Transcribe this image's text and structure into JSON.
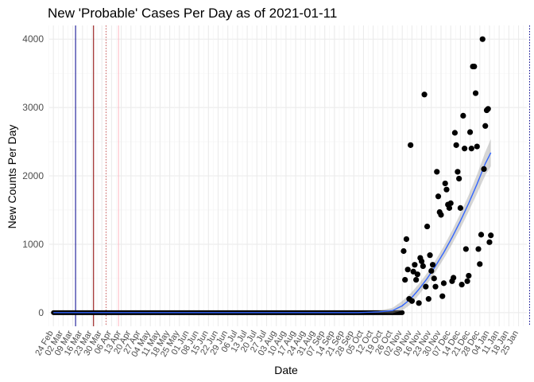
{
  "chart_data": {
    "type": "scatter",
    "title": "New 'Probable' Cases Per Day as of 2021-01-11",
    "xlabel": "Date",
    "ylabel": "New Counts Per Day",
    "ylim": [
      -200,
      4200
    ],
    "yticks": [
      0,
      1000,
      2000,
      3000,
      4000
    ],
    "x_origin": "2020-02-24",
    "xlim_days": [
      -3,
      342
    ],
    "x_tick_labels": [
      "24 Feb",
      "02 Mar",
      "09 Mar",
      "16 Mar",
      "23 Mar",
      "30 Mar",
      "06 Apr",
      "13 Apr",
      "20 Apr",
      "27 Apr",
      "04 May",
      "11 May",
      "18 May",
      "25 May",
      "01 Jun",
      "08 Jun",
      "15 Jun",
      "22 Jun",
      "29 Jun",
      "06 Jul",
      "13 Jul",
      "20 Jul",
      "27 Jul",
      "03 Aug",
      "10 Aug",
      "17 Aug",
      "24 Aug",
      "31 Aug",
      "07 Sep",
      "14 Sep",
      "21 Sep",
      "28 Sep",
      "05 Oct",
      "12 Oct",
      "19 Oct",
      "26 Oct",
      "02 Nov",
      "09 Nov",
      "16 Nov",
      "23 Nov",
      "30 Nov",
      "07 Dec",
      "14 Dec",
      "21 Dec",
      "28 Dec",
      "04 Jan",
      "11 Jan",
      "18 Jan",
      "25 Jan"
    ],
    "grid": true,
    "zero_series": {
      "start_day": 0,
      "end_day": 252,
      "value": 0
    },
    "points": [
      [
        253,
        900
      ],
      [
        254,
        480
      ],
      [
        255,
        1075
      ],
      [
        256,
        630
      ],
      [
        257,
        200
      ],
      [
        258,
        2450
      ],
      [
        259,
        170
      ],
      [
        260,
        600
      ],
      [
        261,
        700
      ],
      [
        262,
        480
      ],
      [
        263,
        560
      ],
      [
        264,
        140
      ],
      [
        265,
        800
      ],
      [
        266,
        750
      ],
      [
        267,
        680
      ],
      [
        268,
        3190
      ],
      [
        269,
        380
      ],
      [
        270,
        1260
      ],
      [
        271,
        200
      ],
      [
        272,
        840
      ],
      [
        273,
        610
      ],
      [
        274,
        700
      ],
      [
        275,
        500
      ],
      [
        276,
        380
      ],
      [
        277,
        2060
      ],
      [
        278,
        1700
      ],
      [
        279,
        1470
      ],
      [
        280,
        1430
      ],
      [
        281,
        240
      ],
      [
        282,
        430
      ],
      [
        283,
        1890
      ],
      [
        284,
        1800
      ],
      [
        285,
        1580
      ],
      [
        286,
        1530
      ],
      [
        287,
        1600
      ],
      [
        288,
        460
      ],
      [
        289,
        510
      ],
      [
        290,
        2630
      ],
      [
        291,
        2450
      ],
      [
        292,
        2060
      ],
      [
        293,
        1960
      ],
      [
        294,
        1530
      ],
      [
        295,
        410
      ],
      [
        296,
        2880
      ],
      [
        297,
        2400
      ],
      [
        298,
        930
      ],
      [
        299,
        460
      ],
      [
        300,
        540
      ],
      [
        301,
        2640
      ],
      [
        302,
        2400
      ],
      [
        303,
        3600
      ],
      [
        304,
        3600
      ],
      [
        305,
        3210
      ],
      [
        306,
        2430
      ],
      [
        307,
        930
      ],
      [
        308,
        710
      ],
      [
        309,
        1140
      ],
      [
        310,
        4000
      ],
      [
        311,
        2100
      ],
      [
        312,
        2730
      ],
      [
        313,
        2960
      ],
      [
        314,
        2980
      ],
      [
        315,
        1030
      ],
      [
        316,
        1130
      ]
    ],
    "trend": {
      "name": "loess fit",
      "color": "#3366ff",
      "x": [
        0,
        180,
        200,
        220,
        235,
        245,
        252,
        258,
        264,
        270,
        276,
        282,
        288,
        294,
        300,
        306,
        312,
        316
      ],
      "y": [
        0,
        0,
        0,
        0,
        10,
        30,
        100,
        200,
        340,
        500,
        680,
        880,
        1100,
        1340,
        1600,
        1880,
        2180,
        2340
      ],
      "band": [
        0,
        0,
        0,
        0,
        15,
        40,
        70,
        80,
        80,
        80,
        85,
        90,
        100,
        110,
        120,
        140,
        170,
        200
      ]
    },
    "vlines": [
      {
        "day": 16,
        "color": "#00008b",
        "style": "solid"
      },
      {
        "day": 29,
        "color": "#8b0000",
        "style": "solid"
      },
      {
        "day": 38,
        "color": "#cd5c5c",
        "style": "dotted"
      },
      {
        "day": 47,
        "color": "#ffb6c1",
        "style": "solid"
      },
      {
        "day": 344,
        "color": "#00008b",
        "style": "dotted"
      }
    ]
  }
}
